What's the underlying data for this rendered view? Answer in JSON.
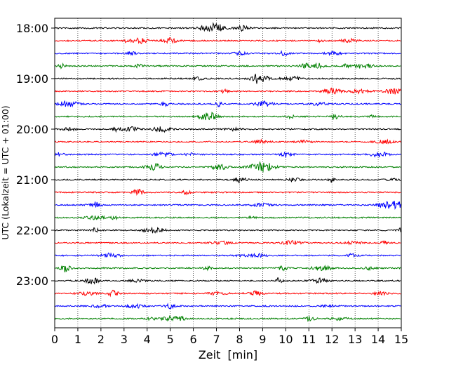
{
  "chart_data": {
    "type": "line",
    "xlabel": "Zeit  [min]",
    "ylabel": "UTC (Lokalzeit = UTC + 01:00)",
    "xlim": [
      0,
      15
    ],
    "x_ticks": [
      "0",
      "1",
      "2",
      "3",
      "4",
      "5",
      "6",
      "7",
      "8",
      "9",
      "10",
      "11",
      "12",
      "13",
      "14",
      "15"
    ],
    "y_ticks": [
      {
        "label": "18:00",
        "trace_index": 0
      },
      {
        "label": "19:00",
        "trace_index": 4
      },
      {
        "label": "20:00",
        "trace_index": 8
      },
      {
        "label": "21:00",
        "trace_index": 12
      },
      {
        "label": "22:00",
        "trace_index": 16
      },
      {
        "label": "23:00",
        "trace_index": 20
      }
    ],
    "grid": "vertical-dotted",
    "trace_colors": [
      "#000000",
      "#ff0000",
      "#0000ff",
      "#008000"
    ],
    "trace_count": 24,
    "trace_interval_min": 15
  }
}
